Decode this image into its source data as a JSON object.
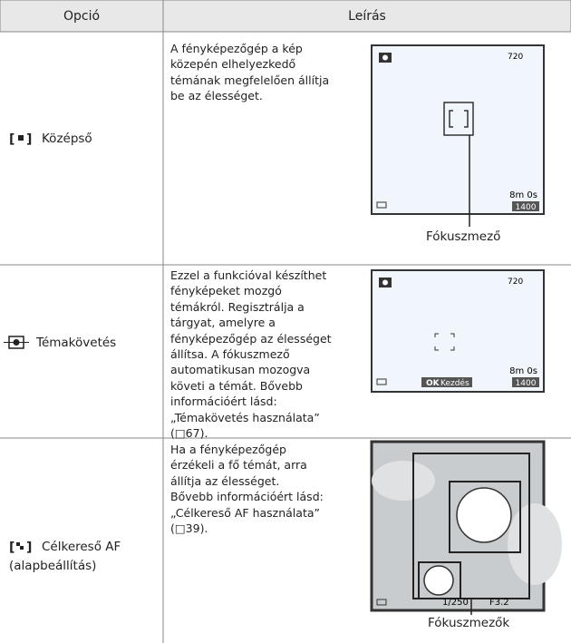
{
  "header": {
    "option": "Opció",
    "description": "Leírás"
  },
  "rows": [
    {
      "option": "Középső",
      "lines": [
        "A fényképezőgép a kép",
        "közepén elhelyezkedő",
        "témának megfelelően állítja",
        "be az élességet."
      ],
      "screen": {
        "top_right": "720",
        "remaining": "8m 0s",
        "count": "1400"
      },
      "callout": "Fókuszmező"
    },
    {
      "option": "Témakövetés",
      "lines": [
        "Ezzel a funkcióval készíthet",
        "fényképeket mozgó",
        "témákról. Regisztrálja a",
        "tárgyat, amelyre a",
        "fényképezőgép az élességet",
        "állítsa. A fókuszmező",
        "automatikusan mozogva",
        "követi a témát. Bővebb",
        "információért lásd:",
        "„Témakövetés használata”",
        "(□67)."
      ],
      "screen": {
        "top_right": "720",
        "remaining": "8m 0s",
        "count": "1400",
        "button": "Kezdés"
      }
    },
    {
      "option": "Célkereső AF",
      "option_note": "(alapbeállítás)",
      "lines": [
        "Ha a fényképezőgép",
        "érzékeli a fő témát, arra",
        "állítja az élességet.",
        "Bővebb információért lásd:",
        "„Célkereső AF használata”",
        "(□39)."
      ],
      "screen": {
        "shutter": "1/250",
        "aperture": "F3.2"
      },
      "callout": "Fókuszmezők"
    }
  ]
}
